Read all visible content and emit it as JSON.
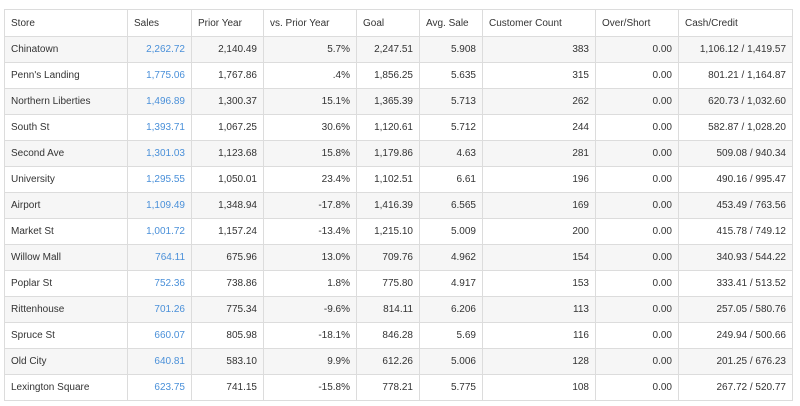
{
  "table": {
    "columns": [
      "Store",
      "Sales",
      "Prior Year",
      "vs. Prior Year",
      "Goal",
      "Avg. Sale",
      "Customer Count",
      "Over/Short",
      "Cash/Credit"
    ],
    "rows": [
      {
        "store": "Chinatown",
        "sales": "2,262.72",
        "prior_year": "2,140.49",
        "vs_prior": "5.7%",
        "goal": "2,247.51",
        "avg_sale": "5.908",
        "customer_count": "383",
        "over_short": "0.00",
        "cash_credit": "1,106.12 / 1,419.57"
      },
      {
        "store": "Penn's Landing",
        "sales": "1,775.06",
        "prior_year": "1,767.86",
        "vs_prior": ".4%",
        "goal": "1,856.25",
        "avg_sale": "5.635",
        "customer_count": "315",
        "over_short": "0.00",
        "cash_credit": "801.21 / 1,164.87"
      },
      {
        "store": "Northern Liberties",
        "sales": "1,496.89",
        "prior_year": "1,300.37",
        "vs_prior": "15.1%",
        "goal": "1,365.39",
        "avg_sale": "5.713",
        "customer_count": "262",
        "over_short": "0.00",
        "cash_credit": "620.73 / 1,032.60"
      },
      {
        "store": "South St",
        "sales": "1,393.71",
        "prior_year": "1,067.25",
        "vs_prior": "30.6%",
        "goal": "1,120.61",
        "avg_sale": "5.712",
        "customer_count": "244",
        "over_short": "0.00",
        "cash_credit": "582.87 / 1,028.20"
      },
      {
        "store": "Second Ave",
        "sales": "1,301.03",
        "prior_year": "1,123.68",
        "vs_prior": "15.8%",
        "goal": "1,179.86",
        "avg_sale": "4.63",
        "customer_count": "281",
        "over_short": "0.00",
        "cash_credit": "509.08 / 940.34"
      },
      {
        "store": "University",
        "sales": "1,295.55",
        "prior_year": "1,050.01",
        "vs_prior": "23.4%",
        "goal": "1,102.51",
        "avg_sale": "6.61",
        "customer_count": "196",
        "over_short": "0.00",
        "cash_credit": "490.16 / 995.47"
      },
      {
        "store": "Airport",
        "sales": "1,109.49",
        "prior_year": "1,348.94",
        "vs_prior": "-17.8%",
        "goal": "1,416.39",
        "avg_sale": "6.565",
        "customer_count": "169",
        "over_short": "0.00",
        "cash_credit": "453.49 / 763.56"
      },
      {
        "store": "Market St",
        "sales": "1,001.72",
        "prior_year": "1,157.24",
        "vs_prior": "-13.4%",
        "goal": "1,215.10",
        "avg_sale": "5.009",
        "customer_count": "200",
        "over_short": "0.00",
        "cash_credit": "415.78 / 749.12"
      },
      {
        "store": "Willow Mall",
        "sales": "764.11",
        "prior_year": "675.96",
        "vs_prior": "13.0%",
        "goal": "709.76",
        "avg_sale": "4.962",
        "customer_count": "154",
        "over_short": "0.00",
        "cash_credit": "340.93 / 544.22"
      },
      {
        "store": "Poplar St",
        "sales": "752.36",
        "prior_year": "738.86",
        "vs_prior": "1.8%",
        "goal": "775.80",
        "avg_sale": "4.917",
        "customer_count": "153",
        "over_short": "0.00",
        "cash_credit": "333.41 / 513.52"
      },
      {
        "store": "Rittenhouse",
        "sales": "701.26",
        "prior_year": "775.34",
        "vs_prior": "-9.6%",
        "goal": "814.11",
        "avg_sale": "6.206",
        "customer_count": "113",
        "over_short": "0.00",
        "cash_credit": "257.05 / 580.76"
      },
      {
        "store": "Spruce St",
        "sales": "660.07",
        "prior_year": "805.98",
        "vs_prior": "-18.1%",
        "goal": "846.28",
        "avg_sale": "5.69",
        "customer_count": "116",
        "over_short": "0.00",
        "cash_credit": "249.94 / 500.66"
      },
      {
        "store": "Old City",
        "sales": "640.81",
        "prior_year": "583.10",
        "vs_prior": "9.9%",
        "goal": "612.26",
        "avg_sale": "5.006",
        "customer_count": "128",
        "over_short": "0.00",
        "cash_credit": "201.25 / 676.23"
      },
      {
        "store": "Lexington Square",
        "sales": "623.75",
        "prior_year": "741.15",
        "vs_prior": "-15.8%",
        "goal": "778.21",
        "avg_sale": "5.775",
        "customer_count": "108",
        "over_short": "0.00",
        "cash_credit": "267.72 / 520.77"
      }
    ]
  }
}
